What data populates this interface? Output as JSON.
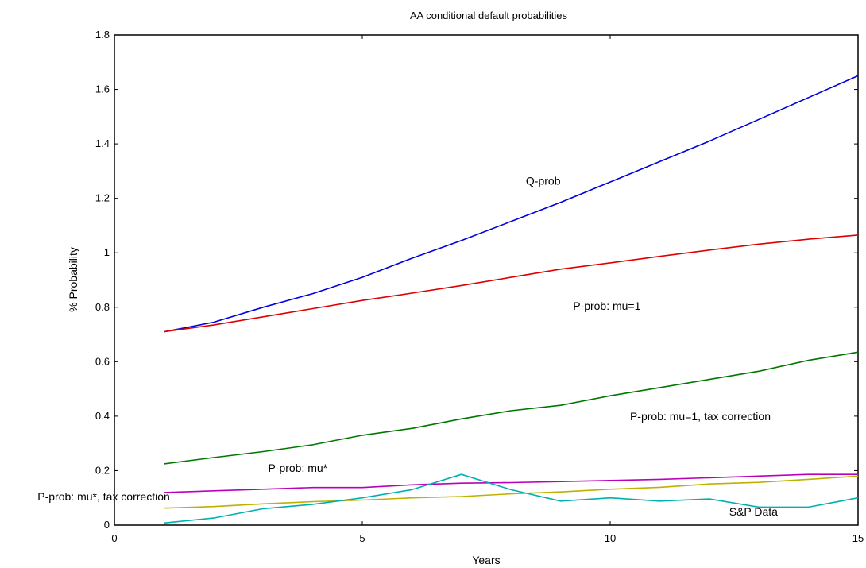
{
  "chart_data": {
    "type": "line",
    "title": "AA conditional default probabilities",
    "xlabel": "Years",
    "ylabel": "% Probability",
    "xlim": [
      0,
      15
    ],
    "ylim": [
      0,
      1.8
    ],
    "xticks": [
      0,
      5,
      10,
      15
    ],
    "yticks": [
      0,
      0.2,
      0.4,
      0.6,
      0.8,
      1,
      1.2,
      1.4,
      1.6,
      1.8
    ],
    "x_tick_labels": [
      "0",
      "5",
      "10",
      "15"
    ],
    "y_tick_labels": [
      "0",
      "0.2",
      "0.4",
      "0.6",
      "0.8",
      "1",
      "1.2",
      "1.4",
      "1.6",
      "1.8"
    ],
    "grid": false,
    "x": [
      1,
      2,
      3,
      4,
      5,
      6,
      7,
      8,
      9,
      10,
      11,
      12,
      13,
      14,
      15
    ],
    "series": [
      {
        "color": "#0000dd",
        "values": [
          0.71,
          0.745,
          0.8,
          0.85,
          0.91,
          0.98,
          1.045,
          1.115,
          1.185,
          1.26,
          1.335,
          1.41,
          1.49,
          1.57,
          1.65
        ]
      },
      {
        "color": "#dd0000",
        "values": [
          0.71,
          0.735,
          0.765,
          0.795,
          0.825,
          0.852,
          0.88,
          0.91,
          0.94,
          0.963,
          0.987,
          1.01,
          1.032,
          1.05,
          1.065
        ]
      },
      {
        "color": "#007700",
        "values": [
          0.225,
          0.248,
          0.27,
          0.295,
          0.33,
          0.355,
          0.39,
          0.42,
          0.44,
          0.475,
          0.505,
          0.535,
          0.565,
          0.605,
          0.635
        ]
      },
      {
        "color": "#bb00bb",
        "values": [
          0.12,
          0.126,
          0.132,
          0.138,
          0.138,
          0.148,
          0.154,
          0.156,
          0.16,
          0.164,
          0.168,
          0.174,
          0.18,
          0.186,
          0.186
        ]
      },
      {
        "color": "#c0b000",
        "values": [
          0.062,
          0.068,
          0.078,
          0.086,
          0.092,
          0.1,
          0.105,
          0.115,
          0.122,
          0.132,
          0.139,
          0.151,
          0.157,
          0.168,
          0.18
        ]
      },
      {
        "color": "#00b0b0",
        "values": [
          0.008,
          0.026,
          0.06,
          0.076,
          0.1,
          0.13,
          0.186,
          0.13,
          0.088,
          0.1,
          0.088,
          0.096,
          0.066,
          0.066,
          0.1
        ]
      }
    ],
    "annotations": [
      {
        "text": "Q-prob",
        "x": 8.3,
        "y": 1.25
      },
      {
        "text": "P-prob: mu=1",
        "x": 9.25,
        "y": 0.79
      },
      {
        "text": "P-prob: mu=1, tax correction",
        "x": 10.4,
        "y": 0.385
      },
      {
        "text": "P-prob: mu*",
        "x": 3.1,
        "y": 0.195
      },
      {
        "text": "P-prob: mu*, tax correction",
        "x": -1.55,
        "y": 0.09
      },
      {
        "text": "S&P Data",
        "x": 12.4,
        "y": 0.035
      }
    ]
  }
}
